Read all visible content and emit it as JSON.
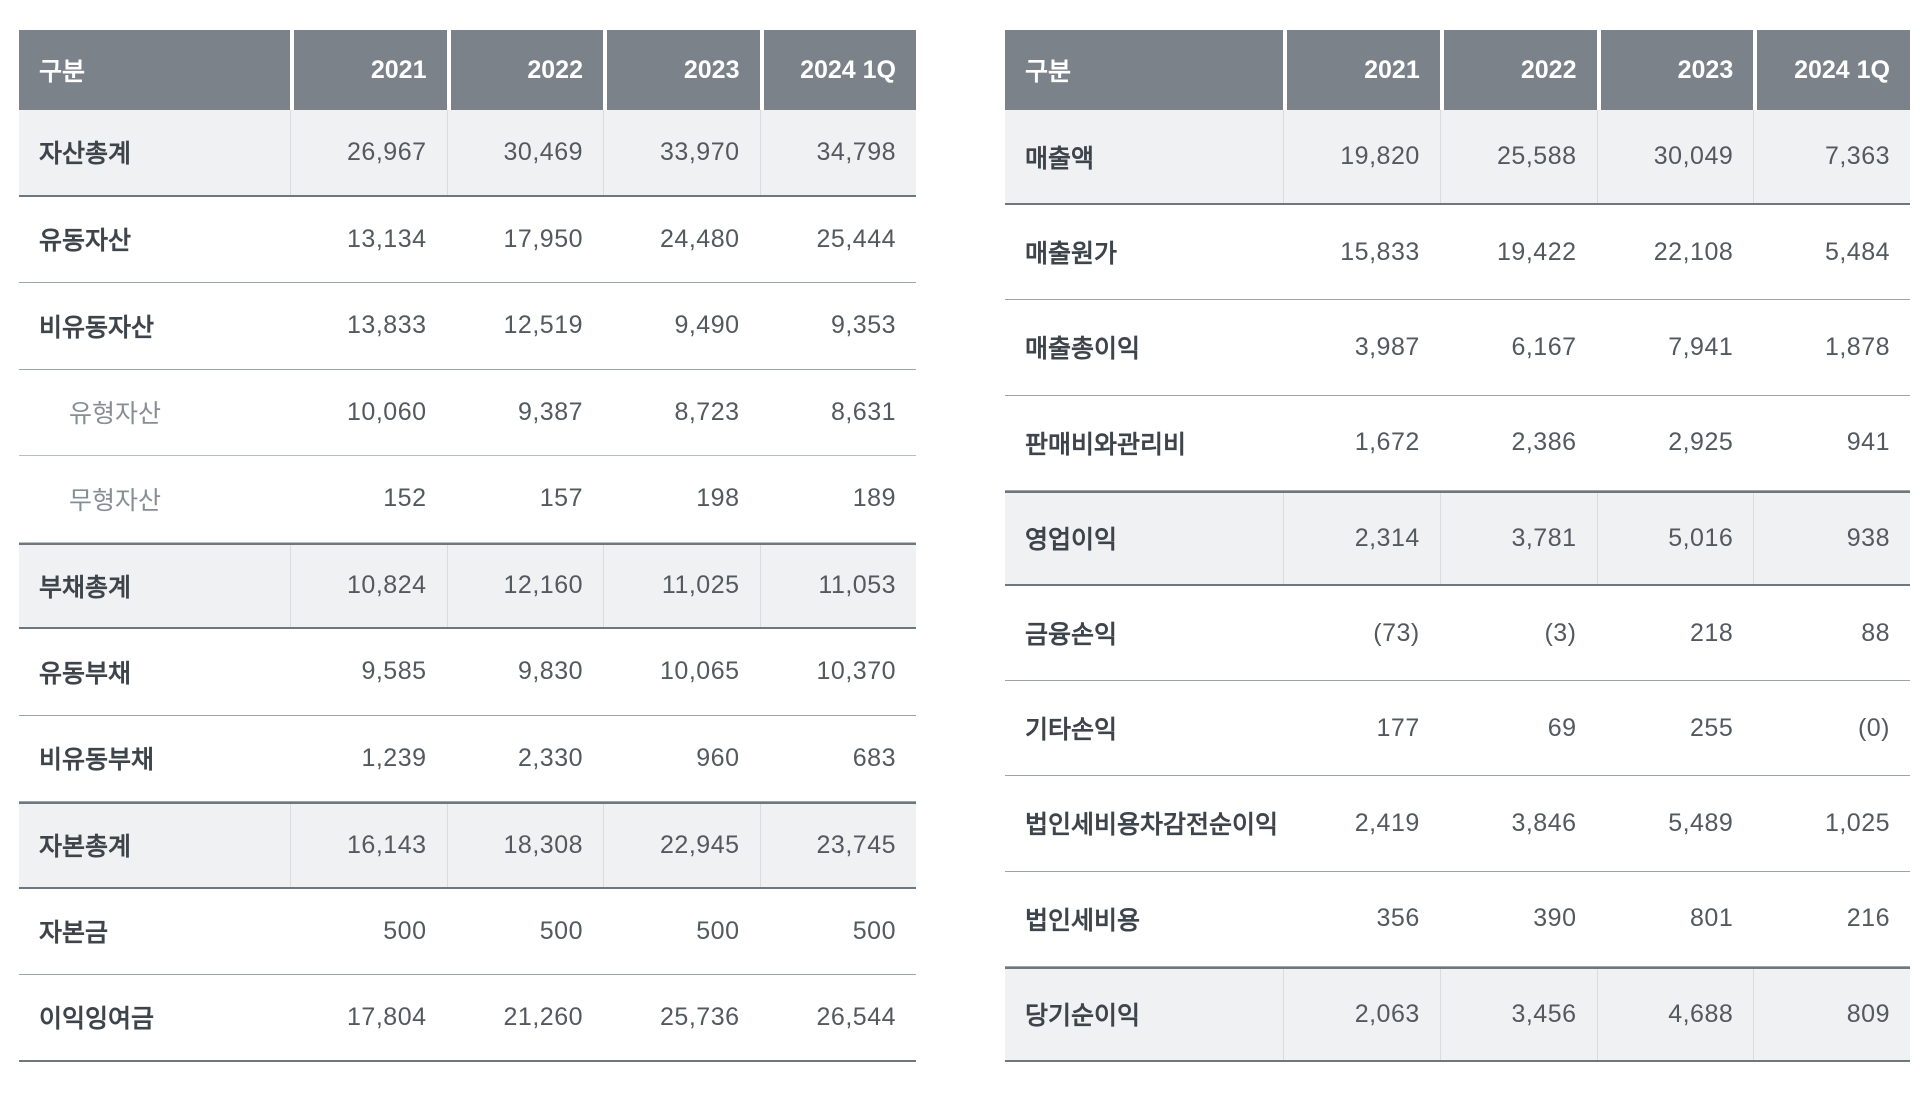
{
  "colors": {
    "header_bg": "#7b8289",
    "header_text": "#ffffff",
    "shaded_row_bg": "#f0f1f3"
  },
  "balance_table": {
    "name": "balance-sheet-table",
    "headers": [
      "구분",
      "2021",
      "2022",
      "2023",
      "2024 1Q"
    ],
    "rows": [
      {
        "label": "자산총계",
        "values": [
          "26,967",
          "30,469",
          "33,970",
          "34,798"
        ],
        "emphasis": true,
        "sub": false
      },
      {
        "label": "유동자산",
        "values": [
          "13,134",
          "17,950",
          "24,480",
          "25,444"
        ],
        "emphasis": false,
        "sub": false
      },
      {
        "label": "비유동자산",
        "values": [
          "13,833",
          "12,519",
          "9,490",
          "9,353"
        ],
        "emphasis": false,
        "sub": false
      },
      {
        "label": "유형자산",
        "values": [
          "10,060",
          "9,387",
          "8,723",
          "8,631"
        ],
        "emphasis": false,
        "sub": true
      },
      {
        "label": "무형자산",
        "values": [
          "152",
          "157",
          "198",
          "189"
        ],
        "emphasis": false,
        "sub": true
      },
      {
        "label": "부채총계",
        "values": [
          "10,824",
          "12,160",
          "11,025",
          "11,053"
        ],
        "emphasis": true,
        "sub": false
      },
      {
        "label": "유동부채",
        "values": [
          "9,585",
          "9,830",
          "10,065",
          "10,370"
        ],
        "emphasis": false,
        "sub": false
      },
      {
        "label": "비유동부채",
        "values": [
          "1,239",
          "2,330",
          "960",
          "683"
        ],
        "emphasis": false,
        "sub": false
      },
      {
        "label": "자본총계",
        "values": [
          "16,143",
          "18,308",
          "22,945",
          "23,745"
        ],
        "emphasis": true,
        "sub": false
      },
      {
        "label": "자본금",
        "values": [
          "500",
          "500",
          "500",
          "500"
        ],
        "emphasis": false,
        "sub": false
      },
      {
        "label": "이익잉여금",
        "values": [
          "17,804",
          "21,260",
          "25,736",
          "26,544"
        ],
        "emphasis": false,
        "sub": false
      }
    ]
  },
  "income_table": {
    "name": "income-statement-table",
    "headers": [
      "구분",
      "2021",
      "2022",
      "2023",
      "2024 1Q"
    ],
    "rows": [
      {
        "label": "매출액",
        "values": [
          "19,820",
          "25,588",
          "30,049",
          "7,363"
        ],
        "emphasis": true,
        "sub": false
      },
      {
        "label": "매출원가",
        "values": [
          "15,833",
          "19,422",
          "22,108",
          "5,484"
        ],
        "emphasis": false,
        "sub": false
      },
      {
        "label": "매출총이익",
        "values": [
          "3,987",
          "6,167",
          "7,941",
          "1,878"
        ],
        "emphasis": false,
        "sub": false
      },
      {
        "label": "판매비와관리비",
        "values": [
          "1,672",
          "2,386",
          "2,925",
          "941"
        ],
        "emphasis": false,
        "sub": false
      },
      {
        "label": "영업이익",
        "values": [
          "2,314",
          "3,781",
          "5,016",
          "938"
        ],
        "emphasis": true,
        "sub": false
      },
      {
        "label": "금융손익",
        "values": [
          "(73)",
          "(3)",
          "218",
          "88"
        ],
        "emphasis": false,
        "sub": false
      },
      {
        "label": "기타손익",
        "values": [
          "177",
          "69",
          "255",
          "(0)"
        ],
        "emphasis": false,
        "sub": false
      },
      {
        "label": "법인세비용차감전순이익",
        "values": [
          "2,419",
          "3,846",
          "5,489",
          "1,025"
        ],
        "emphasis": false,
        "sub": false
      },
      {
        "label": "법인세비용",
        "values": [
          "356",
          "390",
          "801",
          "216"
        ],
        "emphasis": false,
        "sub": false
      },
      {
        "label": "당기순이익",
        "values": [
          "2,063",
          "3,456",
          "4,688",
          "809"
        ],
        "emphasis": true,
        "sub": false
      }
    ]
  }
}
